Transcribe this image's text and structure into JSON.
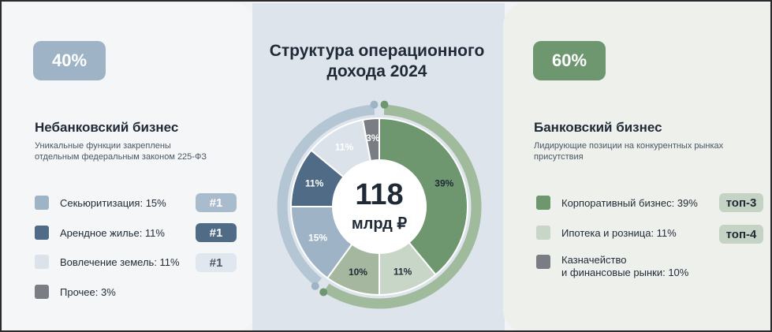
{
  "title_line1": "Структура операционного",
  "title_line2": "дохода 2024",
  "center_value": "118",
  "center_unit": "млрд ₽",
  "left": {
    "percent": "40%",
    "title": "Небанковский бизнес",
    "subtitle_line1": "Уникальные функции закреплены",
    "subtitle_line2": "отдельным федеральным законом 225-ФЗ",
    "items": [
      {
        "label": "Секьюритизация: 15%",
        "color": "#9eb3c6",
        "rank": "#1",
        "rank_bg": "#a9bccd",
        "rank_fg": "#ffffff"
      },
      {
        "label": "Арендное жилье:  11%",
        "color": "#4f6b85",
        "rank": "#1",
        "rank_bg": "#4f6b85",
        "rank_fg": "#ffffff"
      },
      {
        "label": "Вовлечение земель: 11%",
        "color": "#dbe2ea",
        "rank": "#1",
        "rank_bg": "#e1e7ee",
        "rank_fg": "#4a5663"
      },
      {
        "label": "Прочее: 3%",
        "color": "#7a7d84",
        "rank": "",
        "rank_bg": "",
        "rank_fg": ""
      }
    ]
  },
  "right": {
    "percent": "60%",
    "title": "Банковский бизнес",
    "subtitle_line1": "Лидирующие позиции на конкурентных рынках",
    "subtitle_line2": "присутствия",
    "items": [
      {
        "label": "Корпоративный бизнес: 39%",
        "color": "#6e9770",
        "rank": "топ-3",
        "rank_bg": "#c5d3c4",
        "rank_fg": "#1f2a36"
      },
      {
        "label": "Ипотека и розница: 11%",
        "color": "#c8d6c7",
        "rank": "топ-4",
        "rank_bg": "#c5d3c4",
        "rank_fg": "#1f2a36"
      },
      {
        "label_line1": "Казначейство",
        "label_line2": "и финансовые рынки: 10%",
        "color": "#7a7d84",
        "rank": "",
        "rank_bg": "",
        "rank_fg": ""
      }
    ]
  },
  "chart_data": {
    "type": "pie",
    "total_label": "118 млрд ₽",
    "slices": [
      {
        "label": "Корпоративный бизнес",
        "value": 39,
        "text": "39%",
        "color": "#6e9770",
        "text_color": "#1f2a36"
      },
      {
        "label": "Ипотека и розница",
        "value": 11,
        "text": "11%",
        "color": "#c8d6c7",
        "text_color": "#1f2a36"
      },
      {
        "label": "Казначейство и финансовые рынки",
        "value": 10,
        "text": "10%",
        "color": "#a6b79f",
        "text_color": "#1f2a36"
      },
      {
        "label": "Секьюритизация",
        "value": 15,
        "text": "15%",
        "color": "#9eb3c6",
        "text_color": "#ffffff"
      },
      {
        "label": "Арендное жилье",
        "value": 11,
        "text": "11%",
        "color": "#4f6b85",
        "text_color": "#ffffff"
      },
      {
        "label": "Вовлечение земель",
        "value": 11,
        "text": "11%",
        "color": "#dbe2ea",
        "text_color": "#ffffff"
      },
      {
        "label": "Прочее",
        "value": 3,
        "text": "3%",
        "color": "#7a7d84",
        "text_color": "#ffffff"
      }
    ],
    "outer_ring": [
      {
        "label": "Небанковский бизнес",
        "value": 40,
        "color": "#b4c5d4",
        "end_color": "#9eb3c6"
      },
      {
        "label": "Банковский бизнес",
        "value": 60,
        "color": "#9fbb9c",
        "end_color": "#6e9770"
      }
    ]
  }
}
